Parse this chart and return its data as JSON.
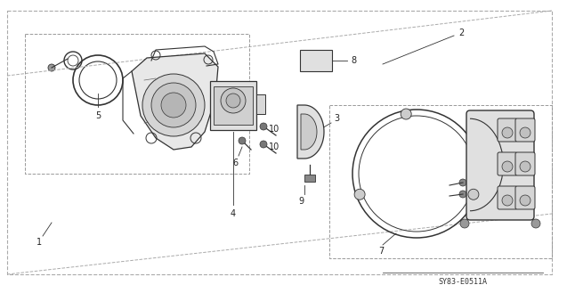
{
  "bg_color": "#ffffff",
  "line_color": "#333333",
  "gray_color": "#888888",
  "catalog_number": "SY83-E0511A",
  "font_size_label": 7,
  "font_size_catalog": 6,
  "outer_parallelogram": {
    "x": [
      0.02,
      0.97,
      0.97,
      0.02
    ],
    "y": [
      0.04,
      0.04,
      0.96,
      0.96
    ],
    "shear": 0.0
  }
}
